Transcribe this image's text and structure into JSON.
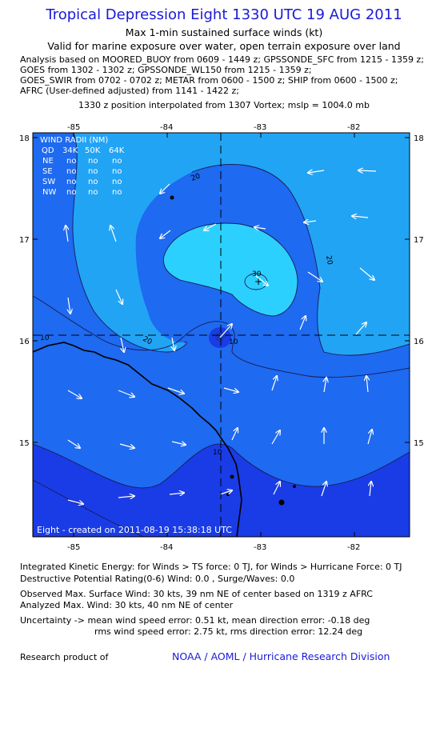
{
  "header": {
    "title": "Tropical Depression Eight 1330 UTC 19 AUG 2011",
    "subtitle1": "Max 1-min sustained surface winds (kt)",
    "subtitle2": "Valid for marine exposure over water, open terrain exposure over land",
    "analysis_lines": [
      "Analysis based on MOORED_BUOY from 0609 - 1449 z; GPSSONDE_SFC from 1215 - 1359 z;",
      "GOES from 1302 - 1302 z; GPSSONDE_WL150 from 1215 - 1359 z;",
      "GOES_SWIR from 0702 - 0702 z; METAR from 0600 - 1500 z; SHIP from 0600 - 1500 z;",
      "AFRC (User-defined adjusted) from 1141 - 1422 z;"
    ],
    "interpolation": "1330 z position interpolated from 1307 Vortex; mslp = 1004.0 mb"
  },
  "map": {
    "lon_ticks": [
      "-85",
      "-84",
      "-83",
      "-82"
    ],
    "lat_ticks": [
      "18",
      "17",
      "16",
      "15"
    ],
    "contour_labels": [
      "20",
      "30",
      "20",
      "10",
      "10",
      "20",
      "10"
    ],
    "wind_radii": {
      "title": "WIND RADII (NM)",
      "header": [
        "QD",
        "34K",
        "50K",
        "64K"
      ],
      "rows": [
        [
          "NE",
          "no",
          "no",
          "no"
        ],
        [
          "SE",
          "no",
          "no",
          "no"
        ],
        [
          "SW",
          "no",
          "no",
          "no"
        ],
        [
          "NW",
          "no",
          "no",
          "no"
        ]
      ]
    },
    "credit": "Eight - created on 2011-08-19 15:38:18 UTC",
    "colors": {
      "band_0_10": "#1a3ce6",
      "band_10_20": "#1e6af0",
      "band_20_30": "#22a4f5",
      "band_30_plus": "#2cd0ff",
      "land": "#000000"
    }
  },
  "footer": {
    "ike": "Integrated Kinetic Energy:  for Winds > TS force: 0 TJ,  for Winds > Hurricane Force: 0 TJ",
    "dpr": "Destructive Potential Rating(0-6)   Wind: 0.0 , Surge/Waves: 0.0",
    "obs_max": "Observed Max. Surface Wind: 30 kts, 39 nm NE of center based on 1319 z AFRC",
    "analyzed_max": "Analyzed Max. Wind: 30 kts, 40 nm NE of center",
    "uncertainty1": "Uncertainty -> mean wind speed error: 0.51 kt,   mean direction error:  -0.18 deg",
    "uncertainty2": "rms wind speed error: 2.75 kt,   rms direction error: 12.24 deg",
    "research": "Research product of",
    "org_link": "NOAA / AOML / Hurricane Research Division"
  }
}
